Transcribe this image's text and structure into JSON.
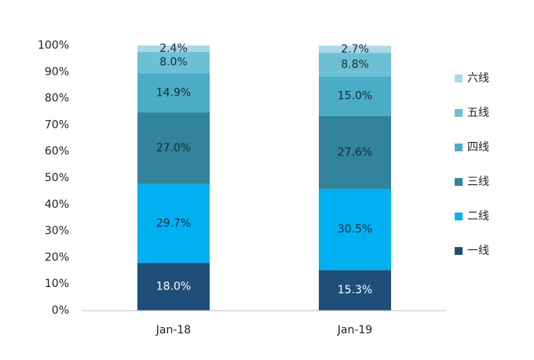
{
  "chart_data": {
    "type": "stacked_bar_100",
    "categories": [
      "Jan-18",
      "Jan-19"
    ],
    "series": [
      {
        "name": "一线",
        "color": "#1f4e79",
        "label_color": "#ffffff",
        "values": [
          18.0,
          15.3
        ],
        "value_labels": [
          "18.0%",
          "15.3%"
        ]
      },
      {
        "name": "二线",
        "color": "#00b0f0",
        "label_color": "#1a2a3a",
        "values": [
          29.7,
          30.5
        ],
        "value_labels": [
          "29.7%",
          "30.5%"
        ]
      },
      {
        "name": "三线",
        "color": "#31849b",
        "label_color": "#1a2a3a",
        "values": [
          27.0,
          27.6
        ],
        "value_labels": [
          "27.0%",
          "27.6%"
        ]
      },
      {
        "name": "四线",
        "color": "#4bacc6",
        "label_color": "#1a2a3a",
        "values": [
          14.9,
          15.0
        ],
        "value_labels": [
          "14.9%",
          "15.0%"
        ]
      },
      {
        "name": "五线",
        "color": "#6cc0d4",
        "label_color": "#1a2a3a",
        "values": [
          8.0,
          8.8
        ],
        "value_labels": [
          "8.0%",
          "8.8%"
        ]
      },
      {
        "name": "六线",
        "color": "#a9d8e6",
        "label_color": "#1a2a3a",
        "values": [
          2.4,
          2.7
        ],
        "value_labels": [
          "2.4%",
          "2.7%"
        ]
      }
    ],
    "ylim": [
      0,
      100
    ],
    "yticks": [
      {
        "value": 0,
        "label": "0%"
      },
      {
        "value": 10,
        "label": "10%"
      },
      {
        "value": 20,
        "label": "20%"
      },
      {
        "value": 30,
        "label": "30%"
      },
      {
        "value": 40,
        "label": "40%"
      },
      {
        "value": 50,
        "label": "50%"
      },
      {
        "value": 60,
        "label": "60%"
      },
      {
        "value": 70,
        "label": "70%"
      },
      {
        "value": 80,
        "label": "80%"
      },
      {
        "value": 90,
        "label": "90%"
      },
      {
        "value": 100,
        "label": "100%"
      }
    ],
    "grid": false,
    "legend": "right"
  }
}
